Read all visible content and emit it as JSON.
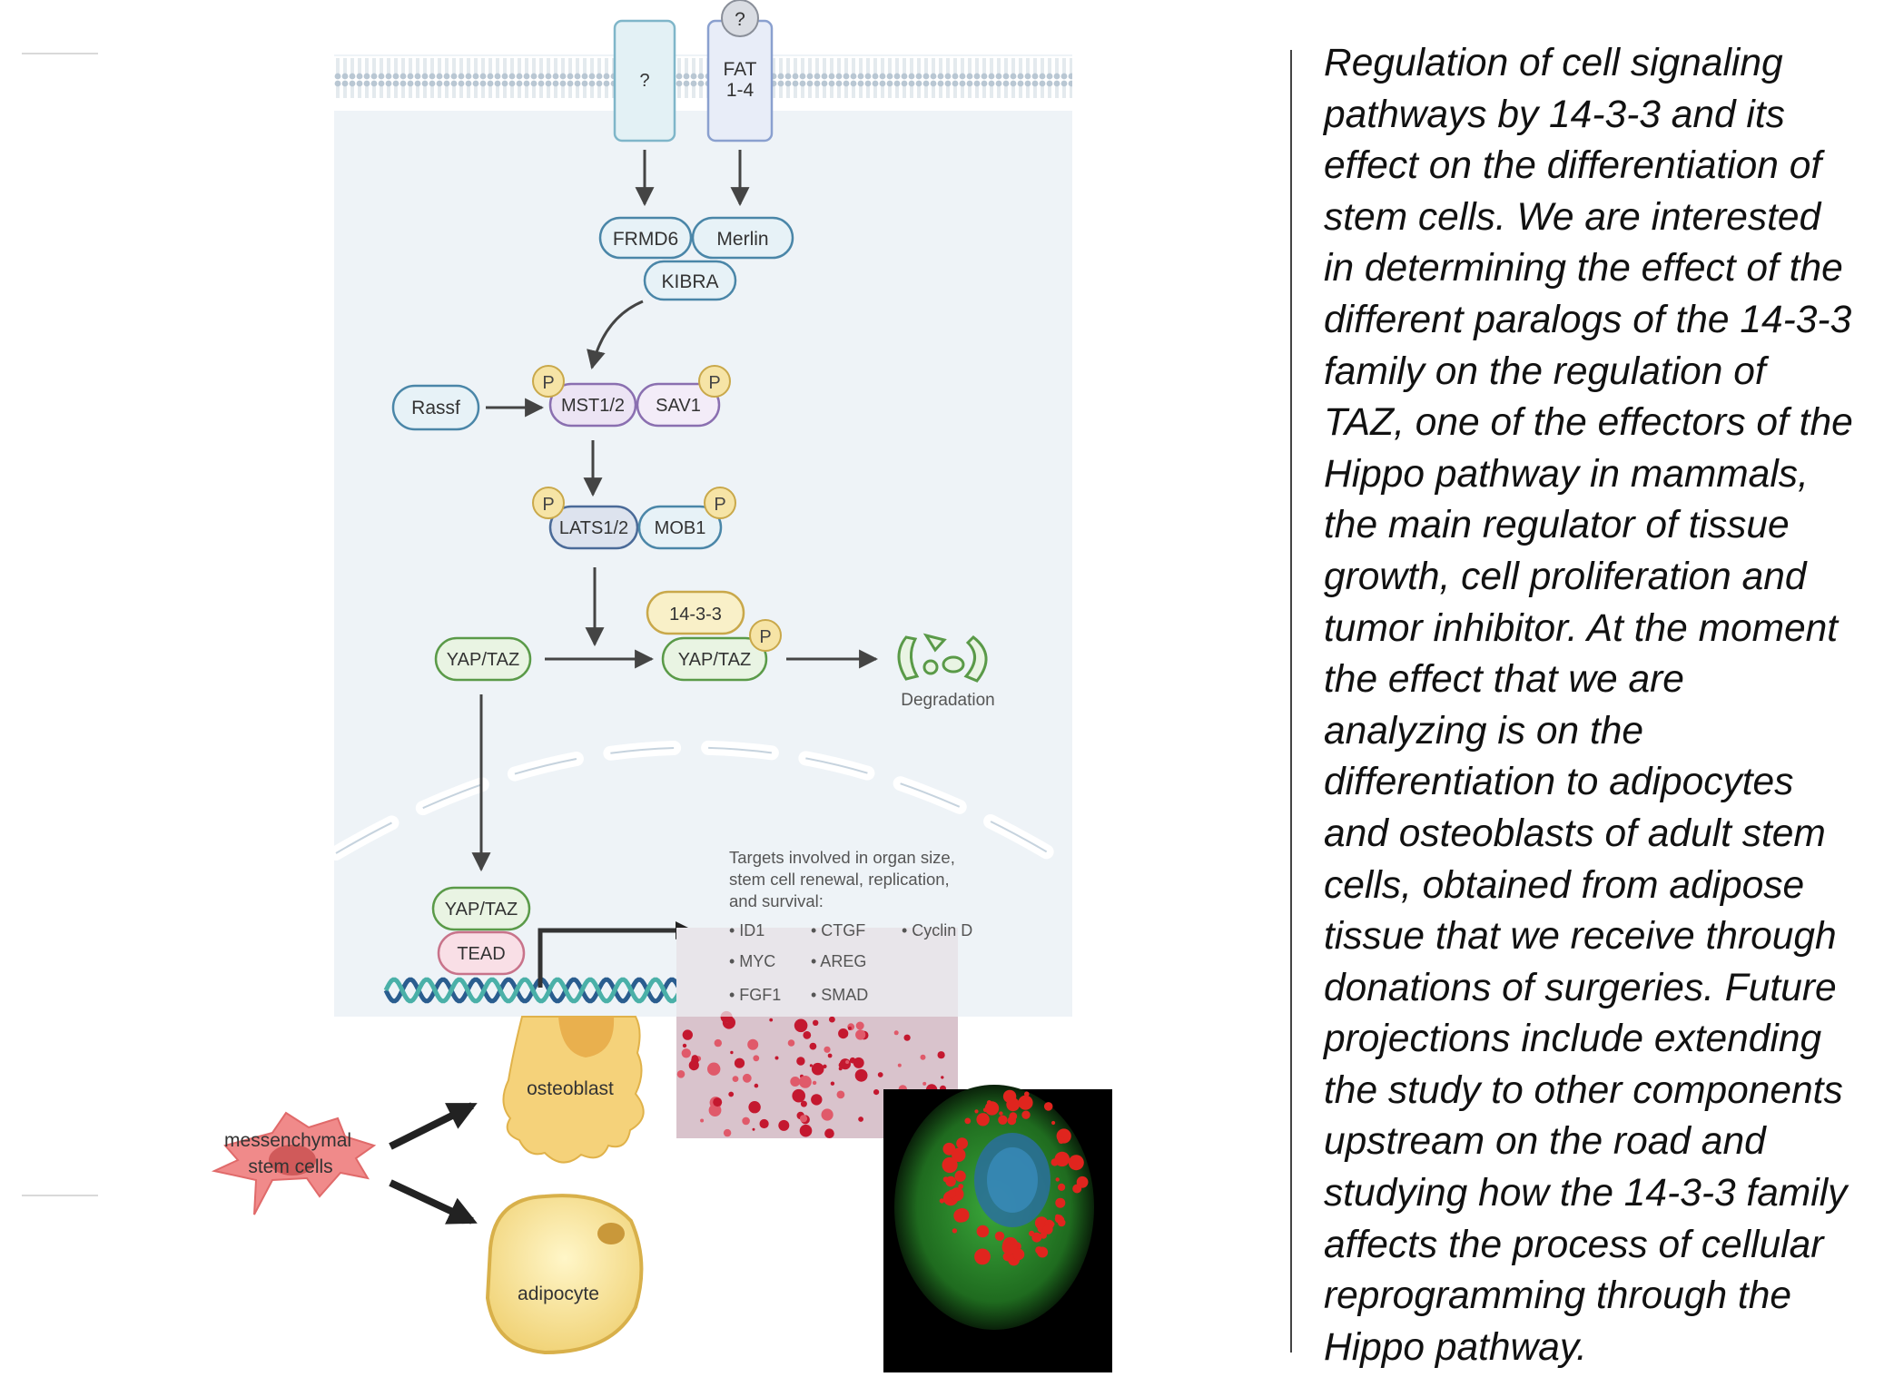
{
  "receptors": {
    "unknown": "?",
    "fat_top": "?",
    "fat": "FAT\n1-4"
  },
  "proteins": {
    "frmd6": "FRMD6",
    "merlin": "Merlin",
    "kibra": "KIBRA",
    "rassf": "Rassf",
    "mst": "MST1/2",
    "sav1": "SAV1",
    "lats": "LATS1/2",
    "mob1": "MOB1",
    "yap_taz_cyto": "YAP/TAZ",
    "protein_1433": "14-3-3",
    "yap_taz_bound": "YAP/TAZ",
    "yap_taz_nuc": "YAP/TAZ",
    "tead": "TEAD",
    "phospho": "P"
  },
  "degradation": "Degradation",
  "targets": {
    "heading": "Targets involved in organ size,\nstem cell renewal, replication,\nand survival:",
    "items": [
      "• ID1",
      "• CTGF",
      "• Cyclin D",
      "• MYC",
      "• AREG",
      "• FGF1",
      "• SMAD"
    ]
  },
  "cells": {
    "stem": "messenchymal\nstem cells",
    "osteoblast": "osteoblast",
    "adipocyte": "adipocyte"
  },
  "description": "Regulation of cell signaling\npathways by 14-3-3 and its\neffect on the differentiation of\nstem cells. We are interested\nin determining the effect of the\ndifferent paralogs of the 14-3-3\nfamily on the regulation of\nTAZ, one of the effectors of the\nHippo pathway in mammals,\nthe main regulator of tissue\ngrowth, cell proliferation and\ntumor inhibitor. At the moment\nthe effect that we are\nanalyzing is on the\ndifferentiation to adipocytes\nand osteoblasts of adult stem\ncells, obtained from adipose\ntissue that we receive through\ndonations of surgeries. Future\nprojections include extending\nthe study to other components\nupstream on the road and\nstudying how the 14-3-3 family\naffects the process of cellular\nreprogramming through the\nHippo pathway.",
  "colors": {
    "cell_bg": "#eef3f7",
    "blue_node": "#4a86a8",
    "purple_node": "#8a6fb0",
    "green_node": "#5a9a48",
    "phospho_fill": "#f6e4a6",
    "arrow": "#444444"
  }
}
